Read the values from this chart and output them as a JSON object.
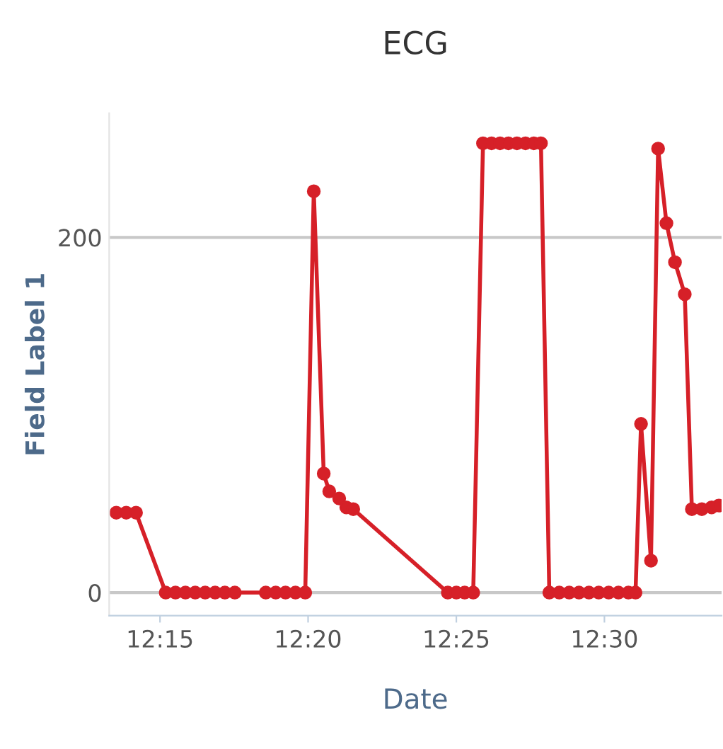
{
  "chart_data": {
    "type": "line",
    "title": "ECG",
    "xlabel": "Date",
    "ylabel": "Field Label 1",
    "x": [
      12.2254,
      12.231,
      12.2365,
      12.2532,
      12.2587,
      12.2643,
      12.2698,
      12.2754,
      12.281,
      12.2865,
      12.2921,
      12.3095,
      12.3151,
      12.3206,
      12.3262,
      12.3317,
      12.3365,
      12.3421,
      12.3452,
      12.3508,
      12.3548,
      12.3587,
      12.4119,
      12.4167,
      12.4214,
      12.4262,
      12.4317,
      12.4365,
      12.4413,
      12.446,
      12.4508,
      12.4556,
      12.4603,
      12.4643,
      12.469,
      12.4746,
      12.4802,
      12.4857,
      12.4913,
      12.4968,
      12.5024,
      12.5079,
      12.5135,
      12.5175,
      12.5206,
      12.5262,
      12.5302,
      12.5349,
      12.5397,
      12.5452,
      12.5492,
      12.5548,
      12.5603,
      12.5643
    ],
    "series": [
      {
        "color": "#d62028",
        "values": [
          45,
          45,
          45,
          0,
          0,
          0,
          0,
          0,
          0,
          0,
          0,
          0,
          0,
          0,
          0,
          0,
          226,
          67,
          57,
          53,
          48,
          47,
          0,
          0,
          0,
          0,
          253,
          253,
          253,
          253,
          253,
          253,
          253,
          253,
          0,
          0,
          0,
          0,
          0,
          0,
          0,
          0,
          0,
          0,
          95,
          18,
          250,
          208,
          186,
          168,
          47,
          47,
          48,
          49
        ]
      }
    ],
    "xlim": [
      12.2214,
      12.5659
    ],
    "xticks": [
      {
        "value": 12.25,
        "label": "12:15"
      },
      {
        "value": 12.3333,
        "label": "12:20"
      },
      {
        "value": 12.4167,
        "label": "12:25"
      },
      {
        "value": 12.5,
        "label": "12:30"
      }
    ],
    "ylim": [
      -13,
      270
    ],
    "yticks": [
      0,
      200
    ],
    "grid": "y",
    "marker": "circle",
    "line_style": "solid",
    "legend": false
  }
}
